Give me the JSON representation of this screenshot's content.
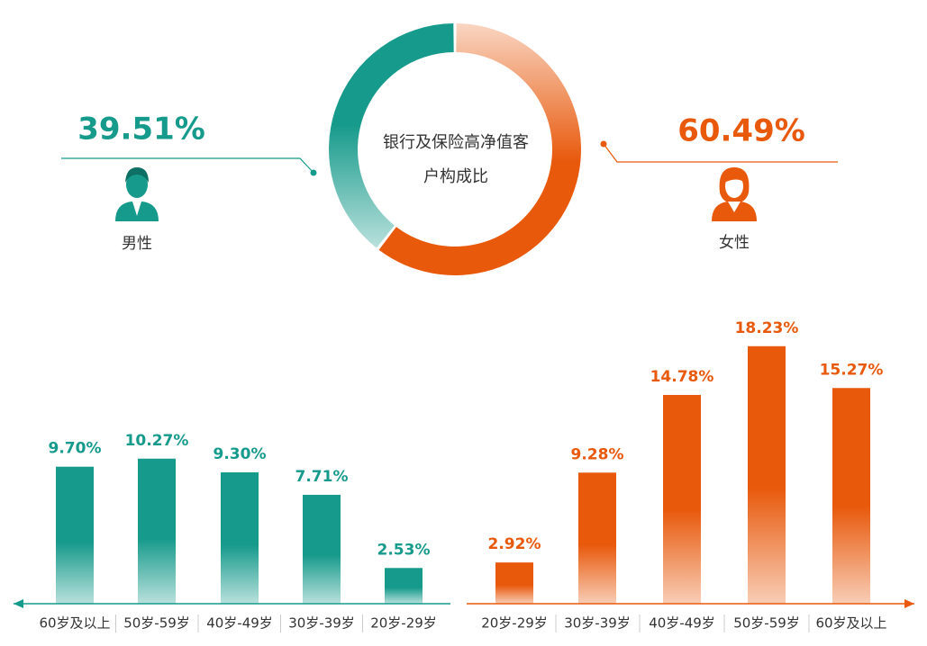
{
  "chart_data": [
    {
      "type": "donut",
      "title": "银行及保险高净值客户构成比",
      "categories": [
        "男性",
        "女性"
      ],
      "values": [
        39.51,
        60.49
      ],
      "value_labels": [
        "39.51%",
        "60.49%"
      ],
      "colors": [
        "#169a8b",
        "#e8590c"
      ]
    },
    {
      "type": "bar",
      "categories": [
        "60岁及以上",
        "50岁-59岁",
        "40岁-49岁",
        "30岁-39岁",
        "20岁-29岁"
      ],
      "values": [
        9.7,
        10.27,
        9.3,
        7.71,
        2.53
      ],
      "value_labels": [
        "9.70%",
        "10.27%",
        "9.30%",
        "7.71%",
        "2.53%"
      ],
      "color": "#169a8b"
    },
    {
      "type": "bar",
      "categories": [
        "20岁-29岁",
        "30岁-39岁",
        "40岁-49岁",
        "50岁-59岁",
        "60岁及以上"
      ],
      "values": [
        2.92,
        9.28,
        14.78,
        18.23,
        15.27
      ],
      "value_labels": [
        "2.92%",
        "9.28%",
        "14.78%",
        "18.23%",
        "15.27%"
      ],
      "color": "#e8590c"
    }
  ]
}
